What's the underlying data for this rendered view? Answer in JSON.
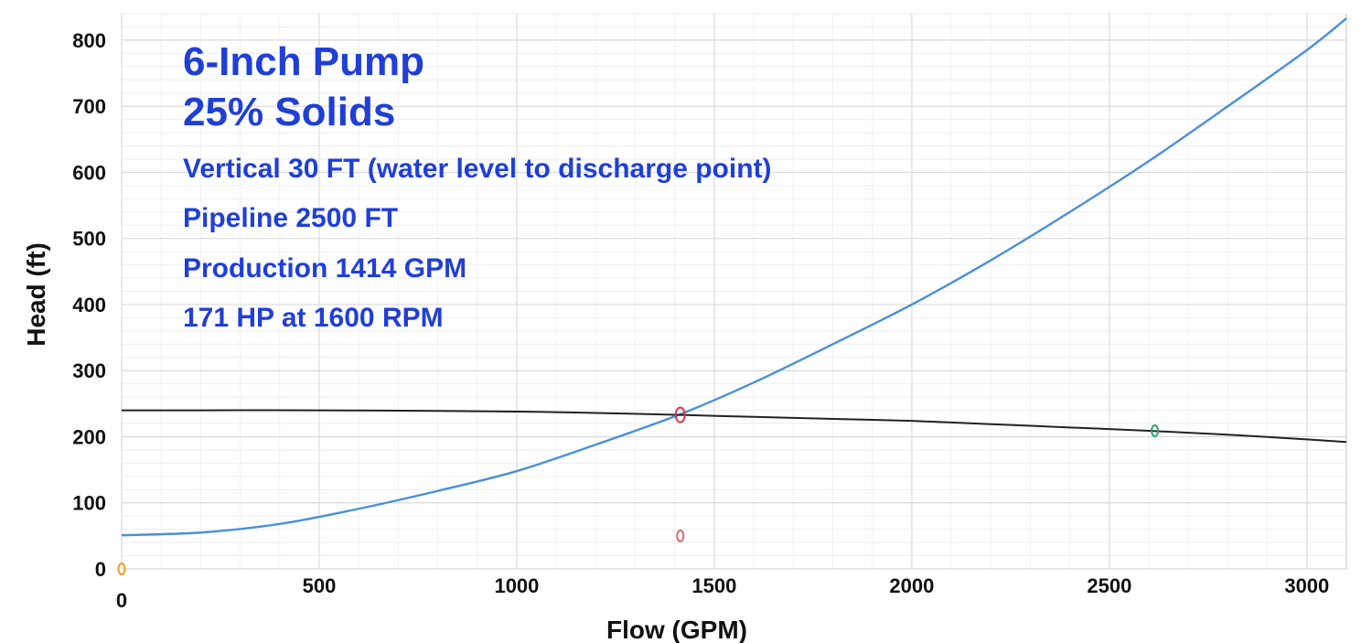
{
  "chart_data": {
    "type": "line",
    "xlabel": "Flow (GPM)",
    "ylabel": "Head (ft)",
    "xlim": [
      0,
      3100
    ],
    "ylim": [
      0,
      840
    ],
    "xticks": [
      0,
      500,
      1000,
      1500,
      2000,
      2500,
      3000
    ],
    "yticks": [
      0,
      100,
      200,
      300,
      400,
      500,
      600,
      700,
      800
    ],
    "grid": true,
    "annotations": [
      "6-Inch Pump",
      "25% Solids",
      "Vertical 30 FT (water level to discharge point)",
      "Pipeline 2500 FT",
      "Production 1414 GPM",
      "171 HP at 1600 RPM"
    ],
    "series": [
      {
        "color": "#4a90d9",
        "x": [
          0,
          200,
          400,
          600,
          800,
          1000,
          1200,
          1414,
          1600,
          1800,
          2000,
          2200,
          2400,
          2600,
          2800,
          3000,
          3100
        ],
        "y": [
          51,
          55,
          68,
          91,
          118,
          148,
          188,
          234,
          282,
          340,
          400,
          467,
          540,
          617,
          700,
          785,
          833
        ]
      },
      {
        "color": "#222222",
        "x": [
          0,
          200,
          500,
          800,
          1000,
          1200,
          1414,
          1600,
          1800,
          2000,
          2200,
          2400,
          2600,
          2800,
          3000,
          3100
        ],
        "y": [
          240,
          240,
          240,
          239,
          238,
          236,
          233,
          230,
          227,
          224,
          219,
          214,
          209,
          203,
          196,
          192
        ]
      }
    ],
    "markers": [
      {
        "x": 1414,
        "y": 233,
        "color": "#d43a4a"
      },
      {
        "x": 2615,
        "y": 209,
        "color": "#2aa86a"
      },
      {
        "x": 0,
        "y": 0,
        "color": "#e8a020"
      },
      {
        "x": 1414,
        "y": 50,
        "color": "#e06a6a"
      }
    ]
  }
}
